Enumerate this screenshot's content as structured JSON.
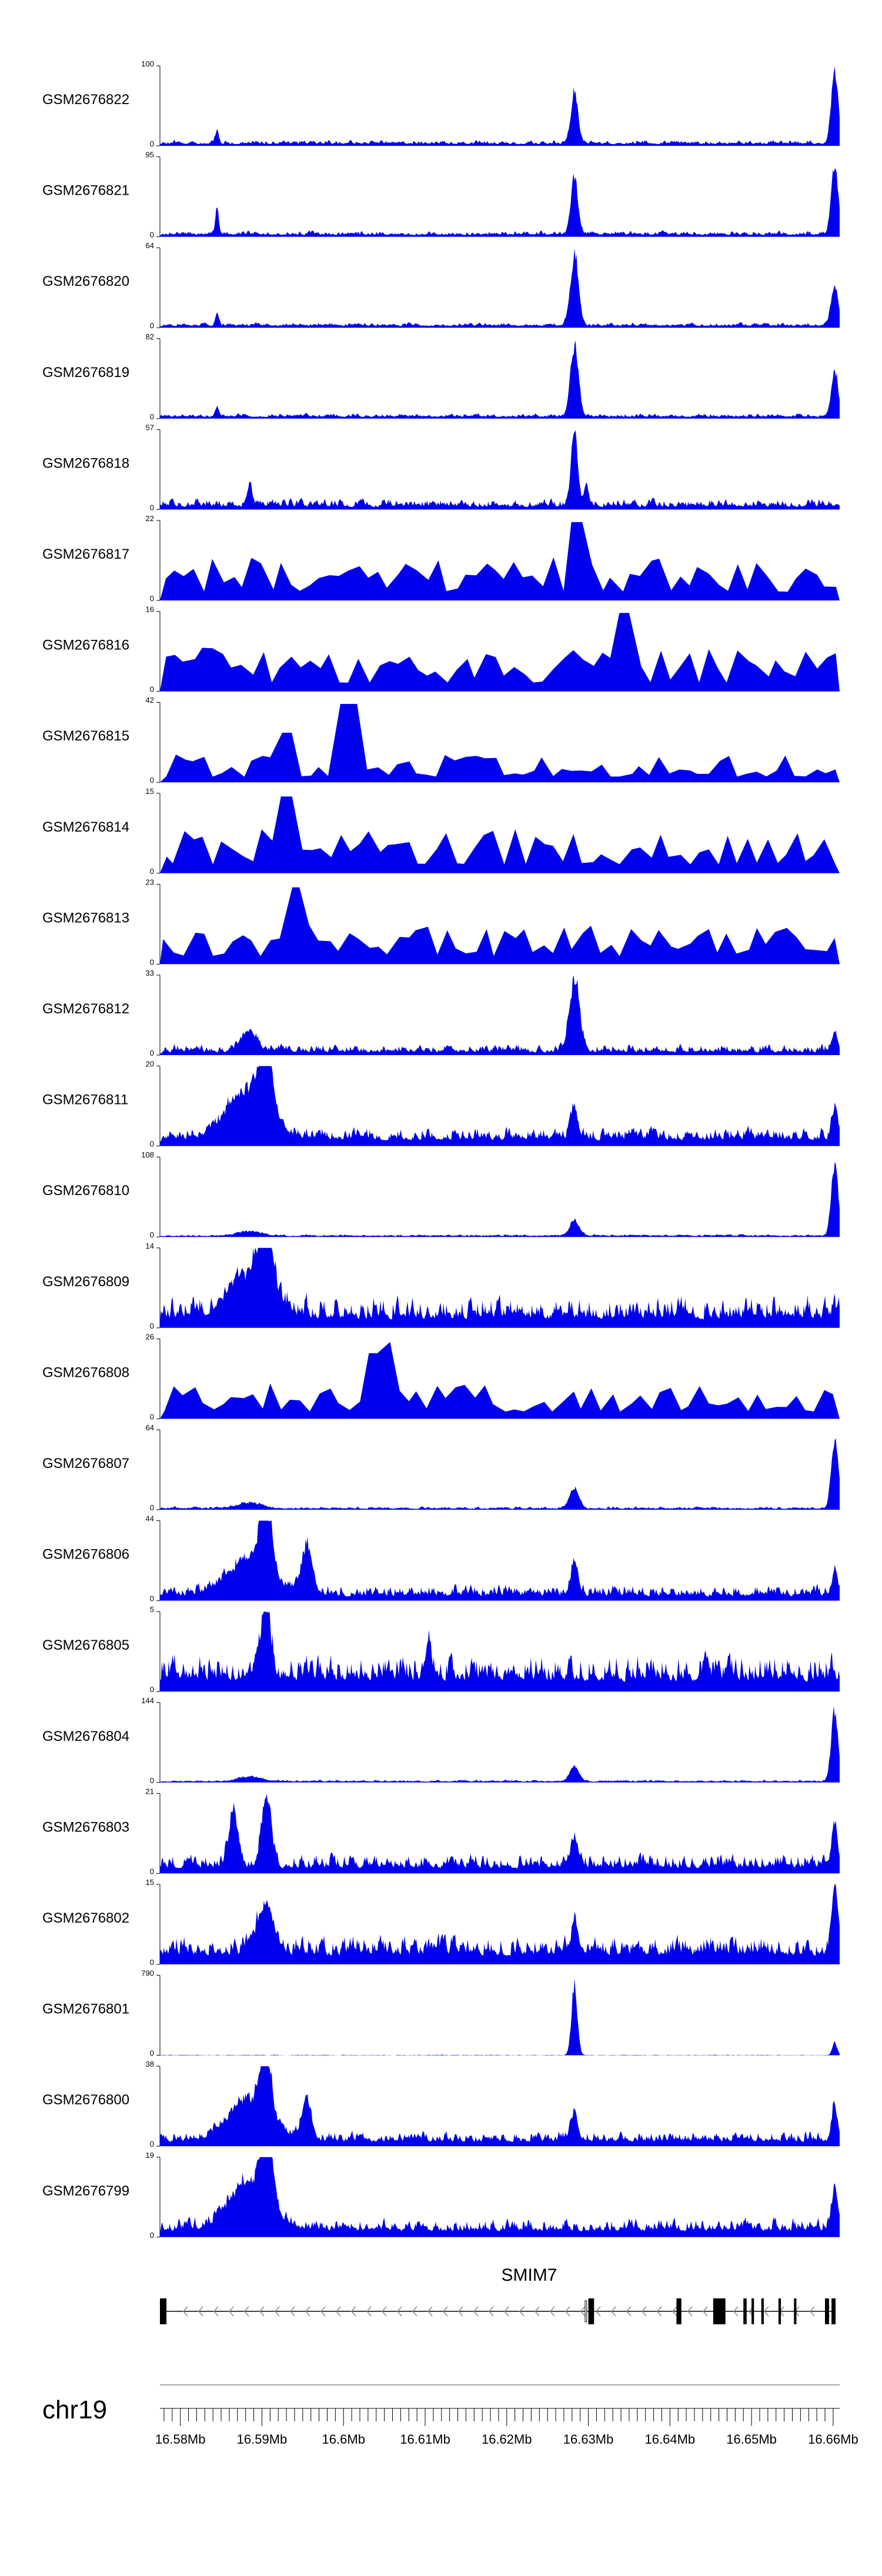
{
  "chart_data": {
    "type": "area",
    "title": "",
    "chromosome": "chr19",
    "x_unit": "Mb",
    "xlim": [
      16.5775,
      16.6608
    ],
    "x_ticks": [
      16.58,
      16.59,
      16.6,
      16.61,
      16.62,
      16.63,
      16.64,
      16.65,
      16.66
    ],
    "x_tick_labels": [
      "16.58Mb",
      "16.59Mb",
      "16.6Mb",
      "16.61Mb",
      "16.62Mb",
      "16.63Mb",
      "16.64Mb",
      "16.65Mb",
      "16.66Mb"
    ],
    "color": "#0000ee",
    "tracks": [
      {
        "name": "GSM2676822",
        "ymax": 100,
        "ymax_label": "100",
        "ymin_label": "0",
        "baseline": 0.02,
        "noise": 0.07,
        "sparse": false,
        "peaks": [
          [
            16.5845,
            0.18,
            0.0003
          ],
          [
            16.6283,
            0.7,
            0.0006
          ],
          [
            16.6602,
            0.98,
            0.0006
          ]
        ]
      },
      {
        "name": "GSM2676821",
        "ymax": 95,
        "ymax_label": "95",
        "ymin_label": "0",
        "baseline": 0.02,
        "noise": 0.07,
        "sparse": false,
        "peaks": [
          [
            16.5845,
            0.35,
            0.0003
          ],
          [
            16.6283,
            0.82,
            0.0006
          ],
          [
            16.6602,
            0.98,
            0.0006
          ]
        ]
      },
      {
        "name": "GSM2676820",
        "ymax": 64,
        "ymax_label": "64",
        "ymin_label": "0",
        "baseline": 0.02,
        "noise": 0.06,
        "sparse": false,
        "peaks": [
          [
            16.5845,
            0.18,
            0.0003
          ],
          [
            16.6283,
            0.98,
            0.0007
          ],
          [
            16.6602,
            0.55,
            0.0006
          ]
        ]
      },
      {
        "name": "GSM2676819",
        "ymax": 82,
        "ymax_label": "82",
        "ymin_label": "0",
        "baseline": 0.02,
        "noise": 0.06,
        "sparse": false,
        "peaks": [
          [
            16.5845,
            0.12,
            0.0003
          ],
          [
            16.6283,
            0.98,
            0.0007
          ],
          [
            16.6602,
            0.62,
            0.0006
          ]
        ]
      },
      {
        "name": "GSM2676818",
        "ymax": 57,
        "ymax_label": "57",
        "ymin_label": "0",
        "baseline": 0.03,
        "noise": 0.14,
        "sparse": false,
        "peaks": [
          [
            16.5885,
            0.3,
            0.0004
          ],
          [
            16.6283,
            0.98,
            0.0006
          ],
          [
            16.6298,
            0.28,
            0.0004
          ]
        ]
      },
      {
        "name": "GSM2676817",
        "ymax": 22,
        "ymax_label": "22",
        "ymin_label": "0",
        "baseline": 0.0,
        "noise": 0.55,
        "sparse": true,
        "peaks": [
          [
            16.6286,
            0.98,
            0.0002
          ]
        ]
      },
      {
        "name": "GSM2676816",
        "ymax": 16,
        "ymax_label": "16",
        "ymin_label": "0",
        "baseline": 0.0,
        "noise": 0.55,
        "sparse": true,
        "peaks": [
          [
            16.6345,
            0.98,
            0.0002
          ]
        ]
      },
      {
        "name": "GSM2676815",
        "ymax": 42,
        "ymax_label": "42",
        "ymin_label": "0",
        "baseline": 0.0,
        "noise": 0.35,
        "sparse": true,
        "peaks": [
          [
            16.6005,
            0.98,
            0.0002
          ],
          [
            16.5925,
            0.62,
            0.0002
          ]
        ]
      },
      {
        "name": "GSM2676814",
        "ymax": 15,
        "ymax_label": "15",
        "ymin_label": "0",
        "baseline": 0.0,
        "noise": 0.55,
        "sparse": true,
        "peaks": [
          [
            16.5925,
            0.96,
            0.0002
          ]
        ]
      },
      {
        "name": "GSM2676813",
        "ymax": 23,
        "ymax_label": "23",
        "ymin_label": "0",
        "baseline": 0.0,
        "noise": 0.5,
        "sparse": true,
        "peaks": [
          [
            16.5945,
            0.96,
            0.0002
          ]
        ]
      },
      {
        "name": "GSM2676812",
        "ymax": 33,
        "ymax_label": "33",
        "ymin_label": "0",
        "baseline": 0.03,
        "noise": 0.14,
        "sparse": false,
        "peaks": [
          [
            16.5885,
            0.3,
            0.0012
          ],
          [
            16.6283,
            0.96,
            0.0009
          ],
          [
            16.6602,
            0.3,
            0.0005
          ]
        ]
      },
      {
        "name": "GSM2676811",
        "ymax": 20,
        "ymax_label": "20",
        "ymin_label": "0",
        "baseline": 0.07,
        "noise": 0.22,
        "sparse": false,
        "peaks": [
          [
            16.5885,
            0.7,
            0.0035
          ],
          [
            16.5905,
            0.95,
            0.001
          ],
          [
            16.6283,
            0.45,
            0.0006
          ],
          [
            16.6602,
            0.38,
            0.0005
          ]
        ]
      },
      {
        "name": "GSM2676810",
        "ymax": 108,
        "ymax_label": "108",
        "ymin_label": "0",
        "baseline": 0.01,
        "noise": 0.03,
        "sparse": false,
        "peaks": [
          [
            16.5885,
            0.06,
            0.002
          ],
          [
            16.6283,
            0.22,
            0.0008
          ],
          [
            16.6602,
            0.98,
            0.0006
          ]
        ]
      },
      {
        "name": "GSM2676809",
        "ymax": 14,
        "ymax_label": "14",
        "ymin_label": "0",
        "baseline": 0.1,
        "noise": 0.4,
        "sparse": false,
        "peaks": [
          [
            16.5885,
            0.6,
            0.0035
          ],
          [
            16.5905,
            0.98,
            0.001
          ]
        ]
      },
      {
        "name": "GSM2676808",
        "ymax": 26,
        "ymax_label": "26",
        "ymin_label": "0",
        "baseline": 0.0,
        "noise": 0.45,
        "sparse": true,
        "peaks": [
          [
            16.6055,
            0.96,
            0.0002
          ],
          [
            16.6035,
            0.82,
            0.0002
          ]
        ]
      },
      {
        "name": "GSM2676807",
        "ymax": 64,
        "ymax_label": "64",
        "ymin_label": "0",
        "baseline": 0.01,
        "noise": 0.04,
        "sparse": false,
        "peaks": [
          [
            16.5885,
            0.08,
            0.002
          ],
          [
            16.6283,
            0.28,
            0.0008
          ],
          [
            16.6602,
            0.98,
            0.0006
          ]
        ]
      },
      {
        "name": "GSM2676806",
        "ymax": 44,
        "ymax_label": "44",
        "ymin_label": "0",
        "baseline": 0.05,
        "noise": 0.2,
        "sparse": false,
        "peaks": [
          [
            16.5885,
            0.5,
            0.0035
          ],
          [
            16.5905,
            0.96,
            0.001
          ],
          [
            16.5955,
            0.62,
            0.001
          ],
          [
            16.6283,
            0.45,
            0.0006
          ],
          [
            16.6602,
            0.3,
            0.0005
          ]
        ]
      },
      {
        "name": "GSM2676805",
        "ymax": 5,
        "ymax_label": "5",
        "ymin_label": "0",
        "baseline": 0.12,
        "noise": 0.45,
        "sparse": false,
        "peaks": [
          [
            16.5905,
            0.95,
            0.0008
          ],
          [
            16.6105,
            0.62,
            0.0004
          ]
        ]
      },
      {
        "name": "GSM2676804",
        "ymax": 144,
        "ymax_label": "144",
        "ymin_label": "0",
        "baseline": 0.01,
        "noise": 0.03,
        "sparse": false,
        "peaks": [
          [
            16.5885,
            0.06,
            0.002
          ],
          [
            16.6283,
            0.2,
            0.0008
          ],
          [
            16.6602,
            0.98,
            0.0006
          ]
        ]
      },
      {
        "name": "GSM2676803",
        "ymax": 21,
        "ymax_label": "21",
        "ymin_label": "0",
        "baseline": 0.06,
        "noise": 0.24,
        "sparse": false,
        "peaks": [
          [
            16.5865,
            0.72,
            0.0008
          ],
          [
            16.5905,
            0.98,
            0.0008
          ],
          [
            16.6283,
            0.4,
            0.0006
          ],
          [
            16.6602,
            0.6,
            0.0005
          ]
        ]
      },
      {
        "name": "GSM2676802",
        "ymax": 15,
        "ymax_label": "15",
        "ymin_label": "0",
        "baseline": 0.1,
        "noise": 0.35,
        "sparse": false,
        "peaks": [
          [
            16.5905,
            0.62,
            0.0015
          ],
          [
            16.6283,
            0.4,
            0.0006
          ],
          [
            16.6602,
            0.98,
            0.0005
          ]
        ]
      },
      {
        "name": "GSM2676801",
        "ymax": 790,
        "ymax_label": "790",
        "ymin_label": "0",
        "baseline": 0.0,
        "noise": 0.01,
        "sparse": false,
        "peaks": [
          [
            16.6283,
            0.98,
            0.0005
          ],
          [
            16.6602,
            0.18,
            0.0004
          ]
        ]
      },
      {
        "name": "GSM2676800",
        "ymax": 38,
        "ymax_label": "38",
        "ymin_label": "0",
        "baseline": 0.05,
        "noise": 0.18,
        "sparse": false,
        "peaks": [
          [
            16.5885,
            0.6,
            0.0035
          ],
          [
            16.5905,
            0.95,
            0.0008
          ],
          [
            16.5955,
            0.55,
            0.0008
          ],
          [
            16.6283,
            0.38,
            0.0006
          ],
          [
            16.6602,
            0.48,
            0.0005
          ]
        ]
      },
      {
        "name": "GSM2676799",
        "ymax": 19,
        "ymax_label": "19",
        "ymin_label": "0",
        "baseline": 0.07,
        "noise": 0.22,
        "sparse": false,
        "peaks": [
          [
            16.5885,
            0.62,
            0.0035
          ],
          [
            16.5905,
            0.98,
            0.001
          ],
          [
            16.6602,
            0.6,
            0.0005
          ]
        ]
      }
    ],
    "gene": {
      "name": "SMIM7",
      "strand": "-",
      "start": 16.5775,
      "end": 16.6603,
      "exons": [
        [
          16.5775,
          16.5783
        ],
        [
          16.63,
          16.6307
        ],
        [
          16.6408,
          16.6414
        ],
        [
          16.6453,
          16.6468
        ],
        [
          16.649,
          16.6494
        ],
        [
          16.65,
          16.6503
        ],
        [
          16.6512,
          16.6515
        ],
        [
          16.6533,
          16.6536
        ],
        [
          16.6552,
          16.6555
        ],
        [
          16.659,
          16.6595
        ],
        [
          16.6598,
          16.6603
        ]
      ],
      "secondary_tick": [
        16.6296,
        16.6298
      ]
    }
  }
}
